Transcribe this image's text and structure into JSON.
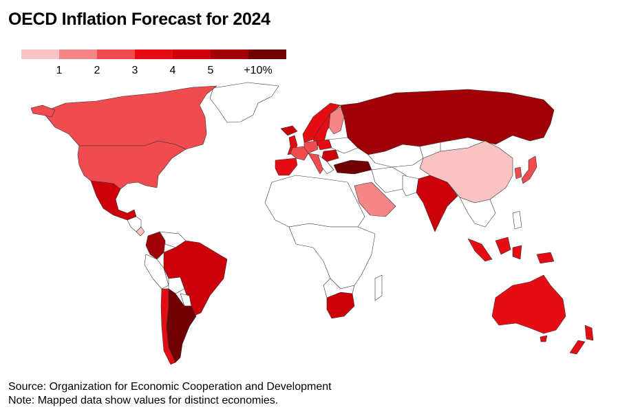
{
  "title": "OECD Inflation Forecast for 2024",
  "legend": {
    "colors": [
      "#f9c3c4",
      "#f58688",
      "#f04b4f",
      "#e60c13",
      "#cc0008",
      "#a00006",
      "#710004"
    ],
    "labels": [
      "1",
      "2",
      "3",
      "4",
      "5",
      "+10%"
    ]
  },
  "colors": {
    "no_data_fill": "#ffffff",
    "border": "#333333",
    "title_color": "#000000"
  },
  "map_data": {
    "type": "choropleth",
    "value_bins": [
      "<1",
      "1-2",
      "2-3",
      "3-4",
      "4-5",
      "5-10",
      ">10"
    ],
    "regions": [
      {
        "name": "Canada",
        "bin": 2
      },
      {
        "name": "United States",
        "bin": 2
      },
      {
        "name": "Mexico",
        "bin": 4
      },
      {
        "name": "Colombia",
        "bin": 5
      },
      {
        "name": "Brazil",
        "bin": 4
      },
      {
        "name": "Argentina",
        "bin": 6
      },
      {
        "name": "Chile",
        "bin": 3
      },
      {
        "name": "Costa Rica",
        "bin": 0
      },
      {
        "name": "Greenland",
        "bin": null
      },
      {
        "name": "United Kingdom",
        "bin": 3
      },
      {
        "name": "Iceland",
        "bin": 4
      },
      {
        "name": "Norway",
        "bin": 3
      },
      {
        "name": "Sweden",
        "bin": 3
      },
      {
        "name": "Finland",
        "bin": 1
      },
      {
        "name": "Spain",
        "bin": 3
      },
      {
        "name": "France",
        "bin": 2
      },
      {
        "name": "Germany",
        "bin": 2
      },
      {
        "name": "Italy",
        "bin": 2
      },
      {
        "name": "Poland",
        "bin": 3
      },
      {
        "name": "Romania",
        "bin": 4
      },
      {
        "name": "Turkey",
        "bin": 6
      },
      {
        "name": "Russia",
        "bin": 5
      },
      {
        "name": "Saudi Arabia",
        "bin": 1
      },
      {
        "name": "India",
        "bin": 4
      },
      {
        "name": "China",
        "bin": 0
      },
      {
        "name": "Japan",
        "bin": 2
      },
      {
        "name": "South Korea",
        "bin": 2
      },
      {
        "name": "Indonesia",
        "bin": 3
      },
      {
        "name": "South Africa",
        "bin": 4
      },
      {
        "name": "Australia",
        "bin": 3
      },
      {
        "name": "New Zealand",
        "bin": 3
      }
    ]
  },
  "footer": {
    "source": "Source: Organization for Economic Cooperation and Development",
    "note": "Note: Mapped data show values for distinct economies."
  }
}
